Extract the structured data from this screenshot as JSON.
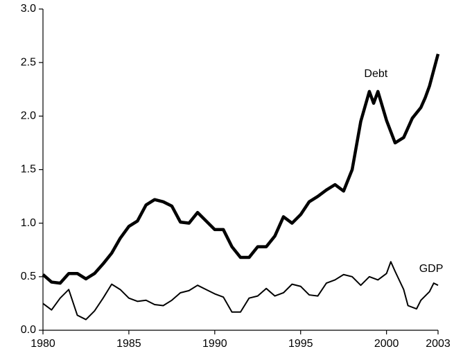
{
  "chart_data": {
    "type": "line",
    "series": [
      {
        "name": "Debt",
        "color": "#000000",
        "width": 4.5,
        "x": [
          1980,
          1980.5,
          1981,
          1981.5,
          1982,
          1982.5,
          1983,
          1983.5,
          1984,
          1984.5,
          1985,
          1985.5,
          1986,
          1986.5,
          1987,
          1987.5,
          1988,
          1988.5,
          1989,
          1989.5,
          1990,
          1990.5,
          1991,
          1991.5,
          1992,
          1992.5,
          1993,
          1993.5,
          1994,
          1994.5,
          1995,
          1995.5,
          1996,
          1996.5,
          1997,
          1997.5,
          1998,
          1998.5,
          1999,
          1999.25,
          1999.5,
          2000,
          2000.5,
          2001,
          2001.5,
          2002,
          2002.25,
          2002.5,
          2003
        ],
        "values": [
          0.52,
          0.45,
          0.44,
          0.53,
          0.53,
          0.48,
          0.53,
          0.62,
          0.72,
          0.86,
          0.97,
          1.02,
          1.17,
          1.22,
          1.2,
          1.16,
          1.01,
          1.0,
          1.1,
          1.02,
          0.94,
          0.94,
          0.78,
          0.68,
          0.68,
          0.78,
          0.78,
          0.88,
          1.06,
          1.0,
          1.08,
          1.2,
          1.25,
          1.31,
          1.36,
          1.3,
          1.5,
          1.95,
          2.23,
          2.12,
          2.23,
          1.96,
          1.75,
          1.8,
          1.98,
          2.08,
          2.17,
          2.28,
          2.58
        ]
      },
      {
        "name": "GDP",
        "color": "#000000",
        "width": 2,
        "x": [
          1980,
          1980.5,
          1981,
          1981.5,
          1982,
          1982.5,
          1983,
          1983.5,
          1984,
          1984.5,
          1985,
          1985.5,
          1986,
          1986.5,
          1987,
          1987.5,
          1988,
          1988.5,
          1989,
          1989.5,
          1990,
          1990.5,
          1991,
          1991.5,
          1992,
          1992.5,
          1993,
          1993.5,
          1994,
          1994.5,
          1995,
          1995.5,
          1996,
          1996.5,
          1997,
          1997.5,
          1998,
          1998.5,
          1999,
          1999.5,
          2000,
          2000.25,
          2000.5,
          2001,
          2001.25,
          2001.75,
          2002,
          2002.5,
          2002.75,
          2003
        ],
        "values": [
          0.25,
          0.19,
          0.3,
          0.38,
          0.14,
          0.1,
          0.18,
          0.3,
          0.43,
          0.38,
          0.3,
          0.27,
          0.28,
          0.24,
          0.23,
          0.28,
          0.35,
          0.37,
          0.42,
          0.38,
          0.34,
          0.31,
          0.17,
          0.17,
          0.3,
          0.32,
          0.39,
          0.32,
          0.35,
          0.43,
          0.41,
          0.33,
          0.32,
          0.44,
          0.47,
          0.52,
          0.5,
          0.42,
          0.5,
          0.47,
          0.53,
          0.64,
          0.55,
          0.38,
          0.23,
          0.2,
          0.28,
          0.36,
          0.44,
          0.42
        ]
      }
    ],
    "xlim": [
      1980,
      2003
    ],
    "xticks": [
      1980,
      1985,
      1990,
      1995,
      2000,
      2003
    ],
    "ylim": [
      0,
      3
    ],
    "yticks": [
      {
        "value": 0,
        "label": "0.0"
      },
      {
        "value": 0.5,
        "label": "0.5"
      },
      {
        "value": 1,
        "label": "1.0"
      },
      {
        "value": 1.5,
        "label": "1.5"
      },
      {
        "value": 2,
        "label": "2.0"
      },
      {
        "value": 2.5,
        "label": "2.5"
      },
      {
        "value": 3,
        "label": "3.0"
      }
    ],
    "grid": false
  }
}
